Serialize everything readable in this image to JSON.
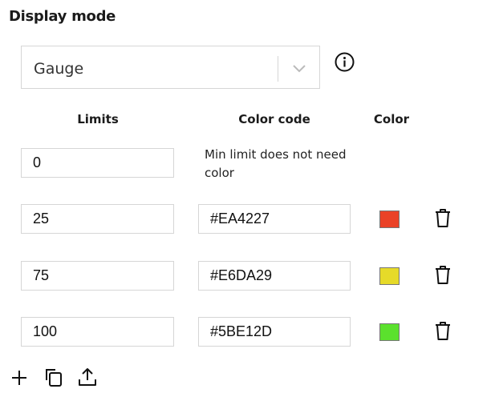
{
  "title": "Display mode",
  "display_mode": {
    "selected": "Gauge"
  },
  "headers": {
    "limits": "Limits",
    "color_code": "Color code",
    "color": "Color"
  },
  "min_row": {
    "limit": "0",
    "note": "Min limit does not need color"
  },
  "rows": [
    {
      "limit": "25",
      "color_code": "#EA4227",
      "color": "#EA4227"
    },
    {
      "limit": "75",
      "color_code": "#E6DA29",
      "color": "#E6DA29"
    },
    {
      "limit": "100",
      "color_code": "#5BE12D",
      "color": "#5BE12D"
    }
  ],
  "toolbar": {
    "icons": [
      "plus-icon",
      "copy-icon",
      "upload-icon"
    ]
  }
}
